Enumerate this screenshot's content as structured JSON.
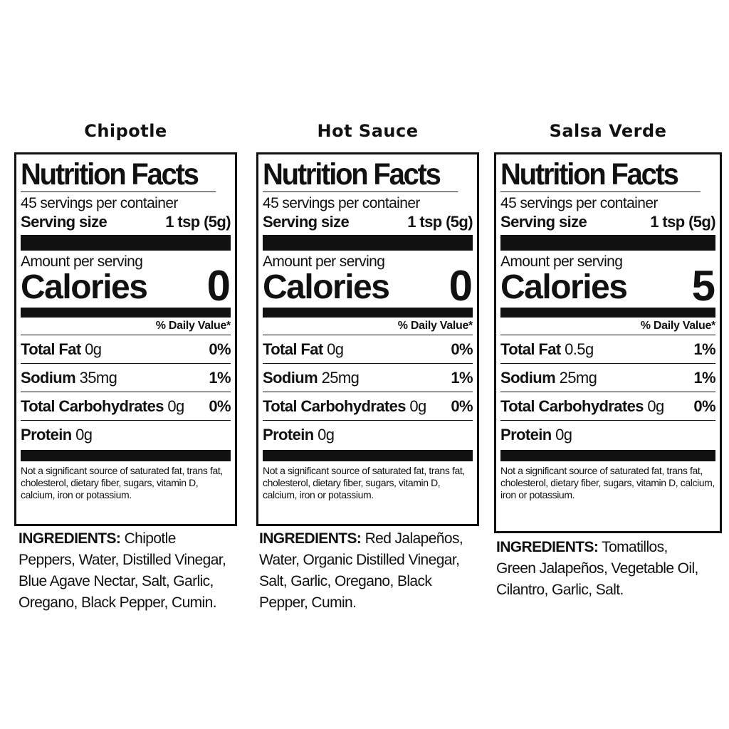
{
  "labels": [
    {
      "name": "Chipotle",
      "title": "Nutrition Facts",
      "servings_per_container": "45 servings per container",
      "serving_size_label": "Serving size",
      "serving_size_value": "1 tsp (5g)",
      "amount_per_serving": "Amount per serving",
      "calories_label": "Calories",
      "calories_value": "0",
      "daily_value_header": "% Daily Value*",
      "nutrients": [
        {
          "name": "Total Fat",
          "amount": "0g",
          "dv": "0%"
        },
        {
          "name": "Sodium",
          "amount": "35mg",
          "dv": "1%"
        },
        {
          "name": "Total Carbohydrates",
          "amount": "0g",
          "dv": "0%"
        },
        {
          "name": "Protein",
          "amount": "0g",
          "dv": ""
        }
      ],
      "footnote": "Not a significant source of saturated fat, trans fat, cholesterol, dietary fiber, sugars, vitamin D, calcium, iron or potassium.",
      "ingredients_label": "INGREDIENTS:",
      "ingredients": "Chipotle Peppers, Water, Distilled Vinegar, Blue Agave Nectar, Salt, Garlic, Oregano, Black Pepper, Cumin."
    },
    {
      "name": "Hot Sauce",
      "title": "Nutrition Facts",
      "servings_per_container": "45 servings per container",
      "serving_size_label": "Serving size",
      "serving_size_value": "1 tsp (5g)",
      "amount_per_serving": "Amount per serving",
      "calories_label": "Calories",
      "calories_value": "0",
      "daily_value_header": "% Daily Value*",
      "nutrients": [
        {
          "name": "Total Fat",
          "amount": "0g",
          "dv": "0%"
        },
        {
          "name": "Sodium",
          "amount": "25mg",
          "dv": "1%"
        },
        {
          "name": "Total Carbohydrates",
          "amount": "0g",
          "dv": "0%"
        },
        {
          "name": "Protein",
          "amount": "0g",
          "dv": ""
        }
      ],
      "footnote": "Not a significant source of saturated fat, trans fat, cholesterol, dietary fiber, sugars, vitamin D, calcium, iron or potassium.",
      "ingredients_label": "INGREDIENTS:",
      "ingredients": "Red Jalapeños, Water, Organic Distilled Vinegar, Salt, Garlic, Oregano, Black Pepper, Cumin."
    },
    {
      "name": "Salsa Verde",
      "title": "Nutrition Facts",
      "servings_per_container": "45 servings per container",
      "serving_size_label": "Serving size",
      "serving_size_value": "1 tsp (5g)",
      "amount_per_serving": "Amount per serving",
      "calories_label": "Calories",
      "calories_value": "5",
      "daily_value_header": "% Daily Value*",
      "nutrients": [
        {
          "name": "Total Fat",
          "amount": "0.5g",
          "dv": "1%"
        },
        {
          "name": "Sodium",
          "amount": "25mg",
          "dv": "1%"
        },
        {
          "name": "Total Carbohydrates",
          "amount": "0g",
          "dv": "0%"
        },
        {
          "name": "Protein",
          "amount": "0g",
          "dv": ""
        }
      ],
      "footnote": "Not a significant source of saturated fat, trans fat, cholesterol, dietary fiber, sugars, vitamin D, calcium, iron or potassium.",
      "ingredients_label": "INGREDIENTS:",
      "ingredients": "Tomatillos, Green Jalapeños, Vegetable Oil, Cilantro, Garlic, Salt."
    }
  ]
}
